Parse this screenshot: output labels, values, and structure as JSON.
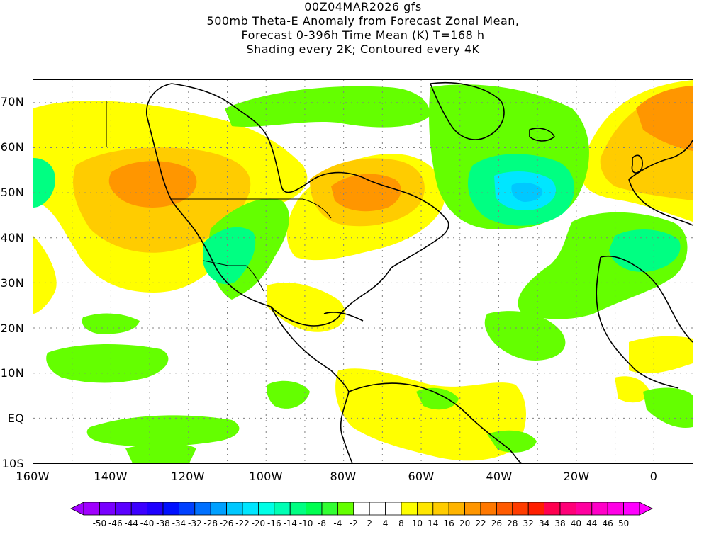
{
  "title": {
    "line1": "00Z04MAR2026 gfs",
    "line2": "500mb Theta-E Anomaly from Forecast Zonal Mean,",
    "line3": "Forecast 0-396h Time Mean (K) T=168 h",
    "line4": "Shading every 2K; Contoured every 4K"
  },
  "map": {
    "projection": "cylindrical equidistant",
    "lon_range": [
      -160,
      10
    ],
    "lat_range": [
      -10,
      75
    ],
    "grid": "dotted, every 10 degrees"
  },
  "axes": {
    "lat_labels": [
      "70N",
      "60N",
      "50N",
      "40N",
      "30N",
      "20N",
      "10N",
      "EQ",
      "10S"
    ],
    "lon_labels": [
      "160W",
      "140W",
      "120W",
      "100W",
      "80W",
      "60W",
      "40W",
      "20W",
      "0"
    ]
  },
  "legend": {
    "labels": [
      "-50",
      "-46",
      "-44",
      "-40",
      "-38",
      "-34",
      "-32",
      "-28",
      "-26",
      "-22",
      "-20",
      "-16",
      "-14",
      "-10",
      "-8",
      "-4",
      "-2",
      "2",
      "4",
      "8",
      "10",
      "14",
      "16",
      "20",
      "22",
      "26",
      "28",
      "32",
      "34",
      "38",
      "40",
      "44",
      "46",
      "50"
    ],
    "colors": [
      "#a000ff",
      "#7800ff",
      "#5a00ff",
      "#3c00ff",
      "#1e00ff",
      "#0010ff",
      "#0040ff",
      "#0070ff",
      "#00a0ff",
      "#00c8ff",
      "#00e6ff",
      "#00ffe6",
      "#00ffb4",
      "#00ff82",
      "#00ff50",
      "#32ff32",
      "#64ff00",
      "#ffffff",
      "#ffffff",
      "#ffffff",
      "#ffff00",
      "#ffe600",
      "#ffcc00",
      "#ffb400",
      "#ff9600",
      "#ff7800",
      "#ff5a00",
      "#ff3c00",
      "#ff1e00",
      "#ff0050",
      "#ff0078",
      "#ff00a0",
      "#ff00c8",
      "#ff00e6",
      "#ff00ff"
    ]
  },
  "colors": {
    "positive_light": "#ffff00",
    "positive_mid": "#ffcc00",
    "positive_strong": "#ff9600",
    "positive_max": "#ff6400",
    "negative_light": "#64ff00",
    "negative_mid": "#00ff82",
    "negative_strong": "#00e6ff",
    "negative_max": "#00c8ff"
  }
}
